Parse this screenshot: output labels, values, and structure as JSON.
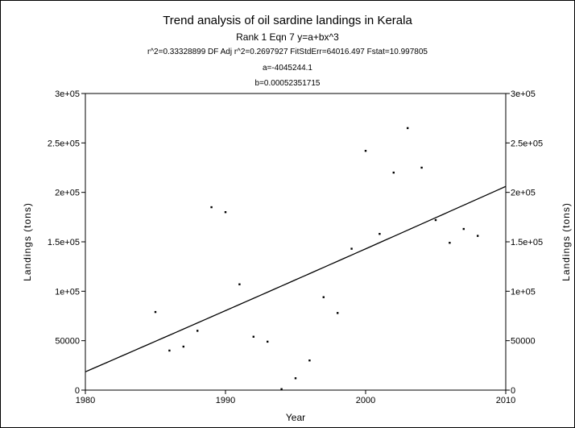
{
  "chart_data": {
    "type": "scatter",
    "title": "Trend analysis of oil sardine landings in Kerala",
    "subtitle_lines": [
      "Rank 1  Eqn 7  y=a+bx^3",
      "r^2=0.33328899  DF Adj r^2=0.2697927  FitStdErr=64016.497  Fstat=10.997805",
      "a=-4045244.1",
      "b=0.00052351715"
    ],
    "xlabel": "Year",
    "ylabel": "Landings (tons)",
    "ylabel_right": "Landings (tons)",
    "xlim": [
      1980,
      2010
    ],
    "ylim": [
      0,
      300000
    ],
    "x_ticks": [
      1980,
      1990,
      2000,
      2010
    ],
    "x_tick_labels": [
      "1980",
      "1990",
      "2000",
      "2010"
    ],
    "y_ticks": [
      0,
      50000,
      100000,
      150000,
      200000,
      250000,
      300000
    ],
    "y_tick_labels": [
      "0",
      "50000",
      "1e+05",
      "1.5e+05",
      "2e+05",
      "2.5e+05",
      "3e+05"
    ],
    "grid": false,
    "points": [
      {
        "x": 1985,
        "y": 79000
      },
      {
        "x": 1986,
        "y": 40000
      },
      {
        "x": 1987,
        "y": 44000
      },
      {
        "x": 1988,
        "y": 60000
      },
      {
        "x": 1989,
        "y": 185000
      },
      {
        "x": 1990,
        "y": 180000
      },
      {
        "x": 1991,
        "y": 107000
      },
      {
        "x": 1992,
        "y": 54000
      },
      {
        "x": 1993,
        "y": 49000
      },
      {
        "x": 1994,
        "y": 1000
      },
      {
        "x": 1995,
        "y": 12000
      },
      {
        "x": 1996,
        "y": 30000
      },
      {
        "x": 1997,
        "y": 94000
      },
      {
        "x": 1998,
        "y": 78000
      },
      {
        "x": 1999,
        "y": 143000
      },
      {
        "x": 2000,
        "y": 242000
      },
      {
        "x": 2001,
        "y": 158000
      },
      {
        "x": 2002,
        "y": 220000
      },
      {
        "x": 2003,
        "y": 265000
      },
      {
        "x": 2004,
        "y": 225000
      },
      {
        "x": 2005,
        "y": 172000
      },
      {
        "x": 2006,
        "y": 149000
      },
      {
        "x": 2007,
        "y": 163000
      },
      {
        "x": 2008,
        "y": 156000
      }
    ],
    "fit": {
      "a": -4045244.1,
      "b": 0.00052351715
    },
    "colors": {
      "points": "#000000",
      "fit_line": "#000000",
      "axes": "#000000"
    }
  }
}
